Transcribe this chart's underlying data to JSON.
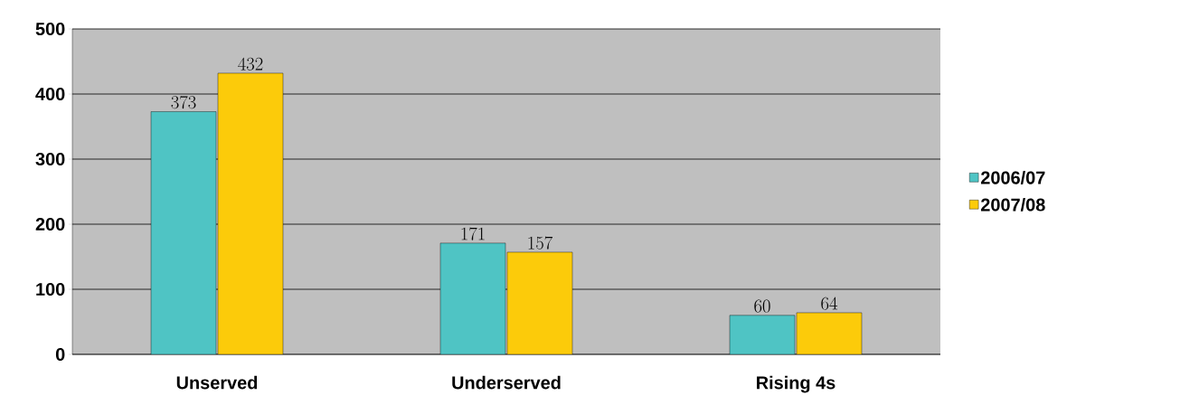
{
  "chart_data": {
    "type": "bar",
    "categories": [
      "Unserved",
      "Underserved",
      "Rising 4s"
    ],
    "series": [
      {
        "name": "2006/07",
        "color": "#4fc4c4",
        "values": [
          373,
          171,
          60
        ]
      },
      {
        "name": "2007/08",
        "color": "#fccb0a",
        "values": [
          432,
          157,
          64
        ]
      }
    ],
    "ylim": [
      0,
      500
    ],
    "yticks": [
      0,
      100,
      200,
      300,
      400,
      500
    ],
    "grid": "y",
    "legend": "right",
    "data_labels": true
  }
}
